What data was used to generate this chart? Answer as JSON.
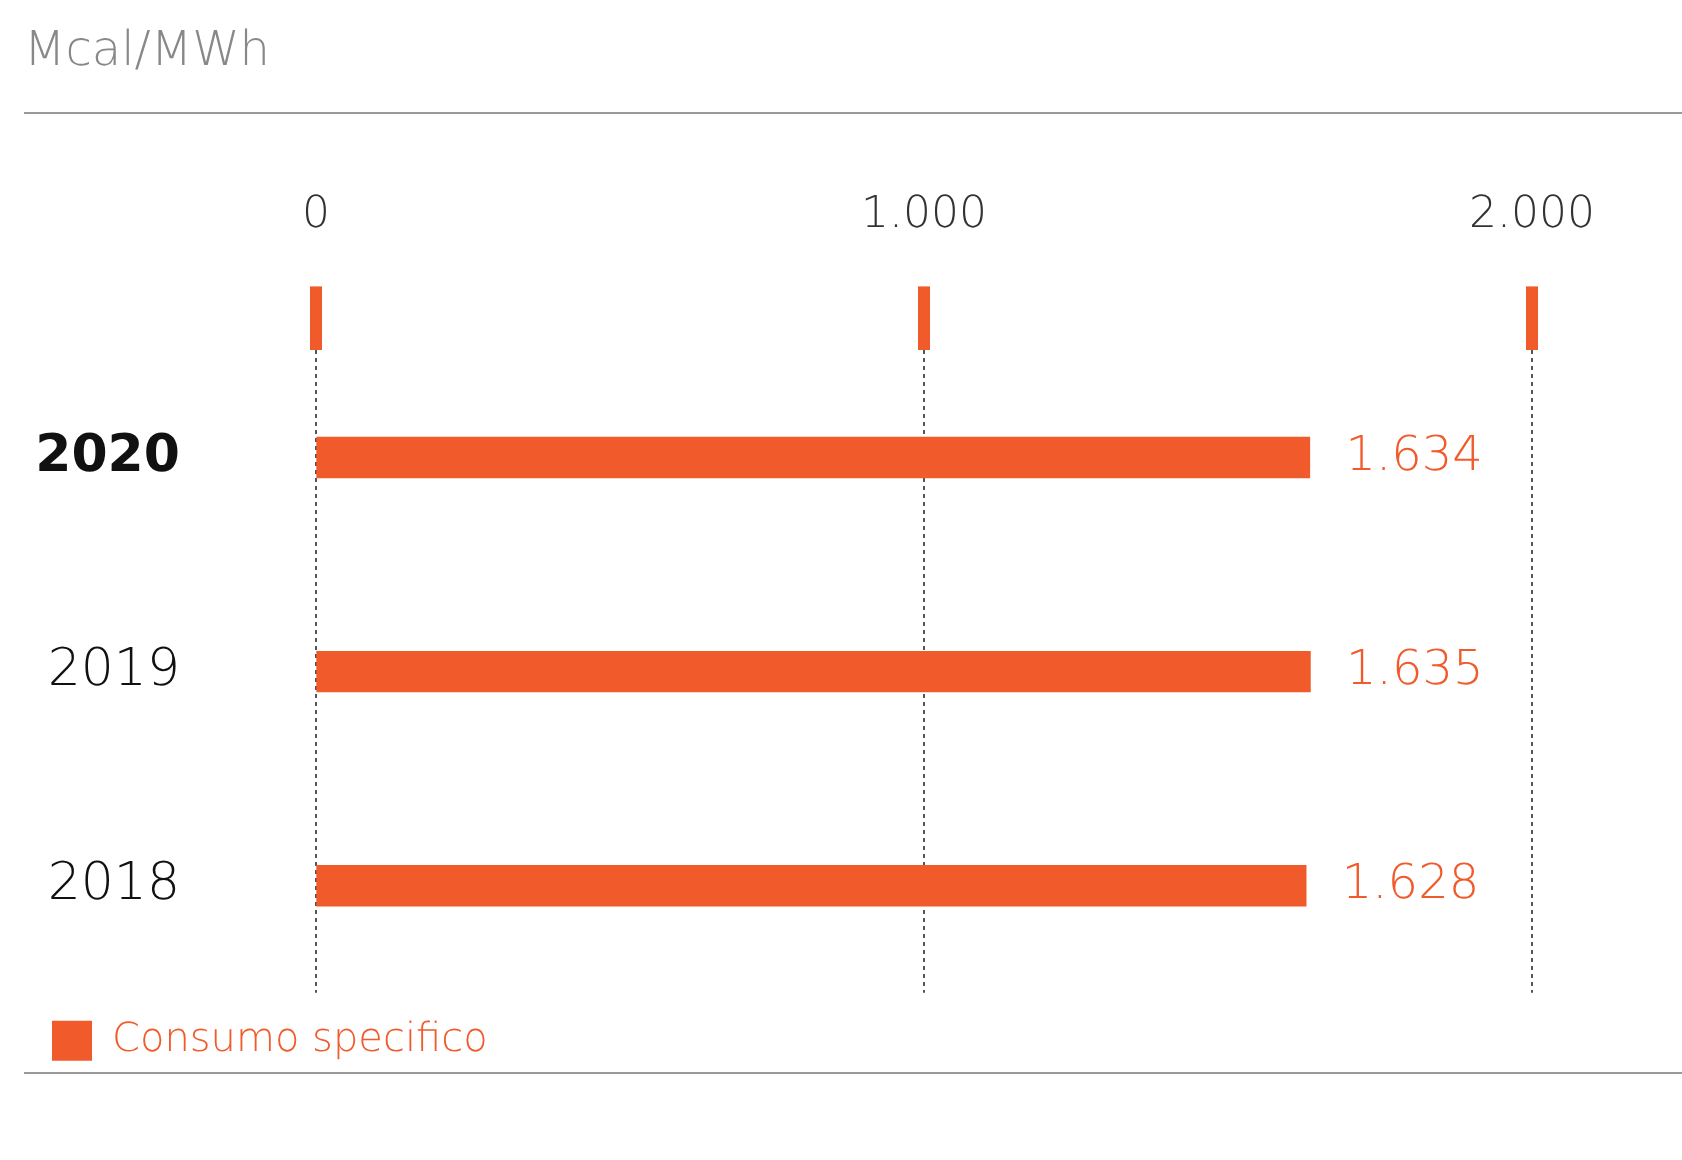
{
  "chart_data": {
    "type": "bar",
    "orientation": "horizontal",
    "title": "Mcal/MWh",
    "categories": [
      "2020",
      "2019",
      "2018"
    ],
    "series": [
      {
        "name": "Consumo specifico",
        "color": "#f15a2b",
        "values": [
          1634,
          1635,
          1628
        ],
        "value_labels": [
          "1.634",
          "1.635",
          "1.628"
        ]
      }
    ],
    "xlim": [
      0,
      2000
    ],
    "xticks": [
      0,
      {
        "value": 1000,
        "label": "1.000"
      },
      {
        "value": 2000,
        "label": "2.000"
      }
    ],
    "grid": "x",
    "legend": "bottom"
  }
}
